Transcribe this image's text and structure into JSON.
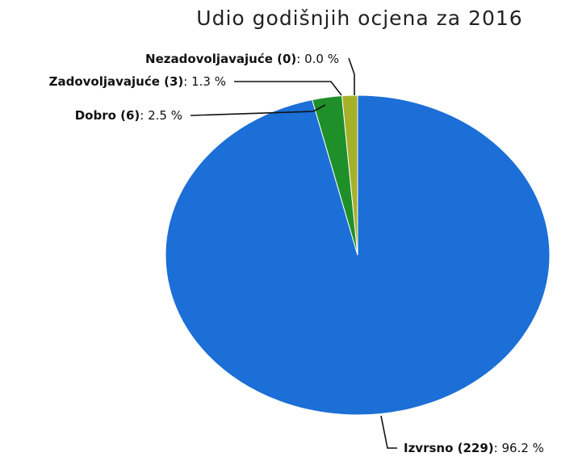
{
  "chart_data": {
    "type": "pie",
    "title": "Udio godišnjih ocjena za 2016",
    "slices": [
      {
        "name": "Izvrsno",
        "count": 229,
        "percent": 96.2,
        "color": "#1b6fd6",
        "label_name": "Izvrsno (229)",
        "label_value": "96.2 %"
      },
      {
        "name": "Dobro",
        "count": 6,
        "percent": 2.5,
        "color": "#1f8f2a",
        "label_name": "Dobro (6)",
        "label_value": "2.5 %"
      },
      {
        "name": "Zadovoljavajuće",
        "count": 3,
        "percent": 1.3,
        "color": "#a6b12a",
        "label_name": "Zadovoljavajuće (3)",
        "label_value": "1.3 %"
      },
      {
        "name": "Nezadovoljavajuće",
        "count": 0,
        "percent": 0.0,
        "color": "#c0392b",
        "label_name": "Nezadovoljavajuće (0)",
        "label_value": "0.0 %"
      }
    ],
    "separator": ":"
  }
}
